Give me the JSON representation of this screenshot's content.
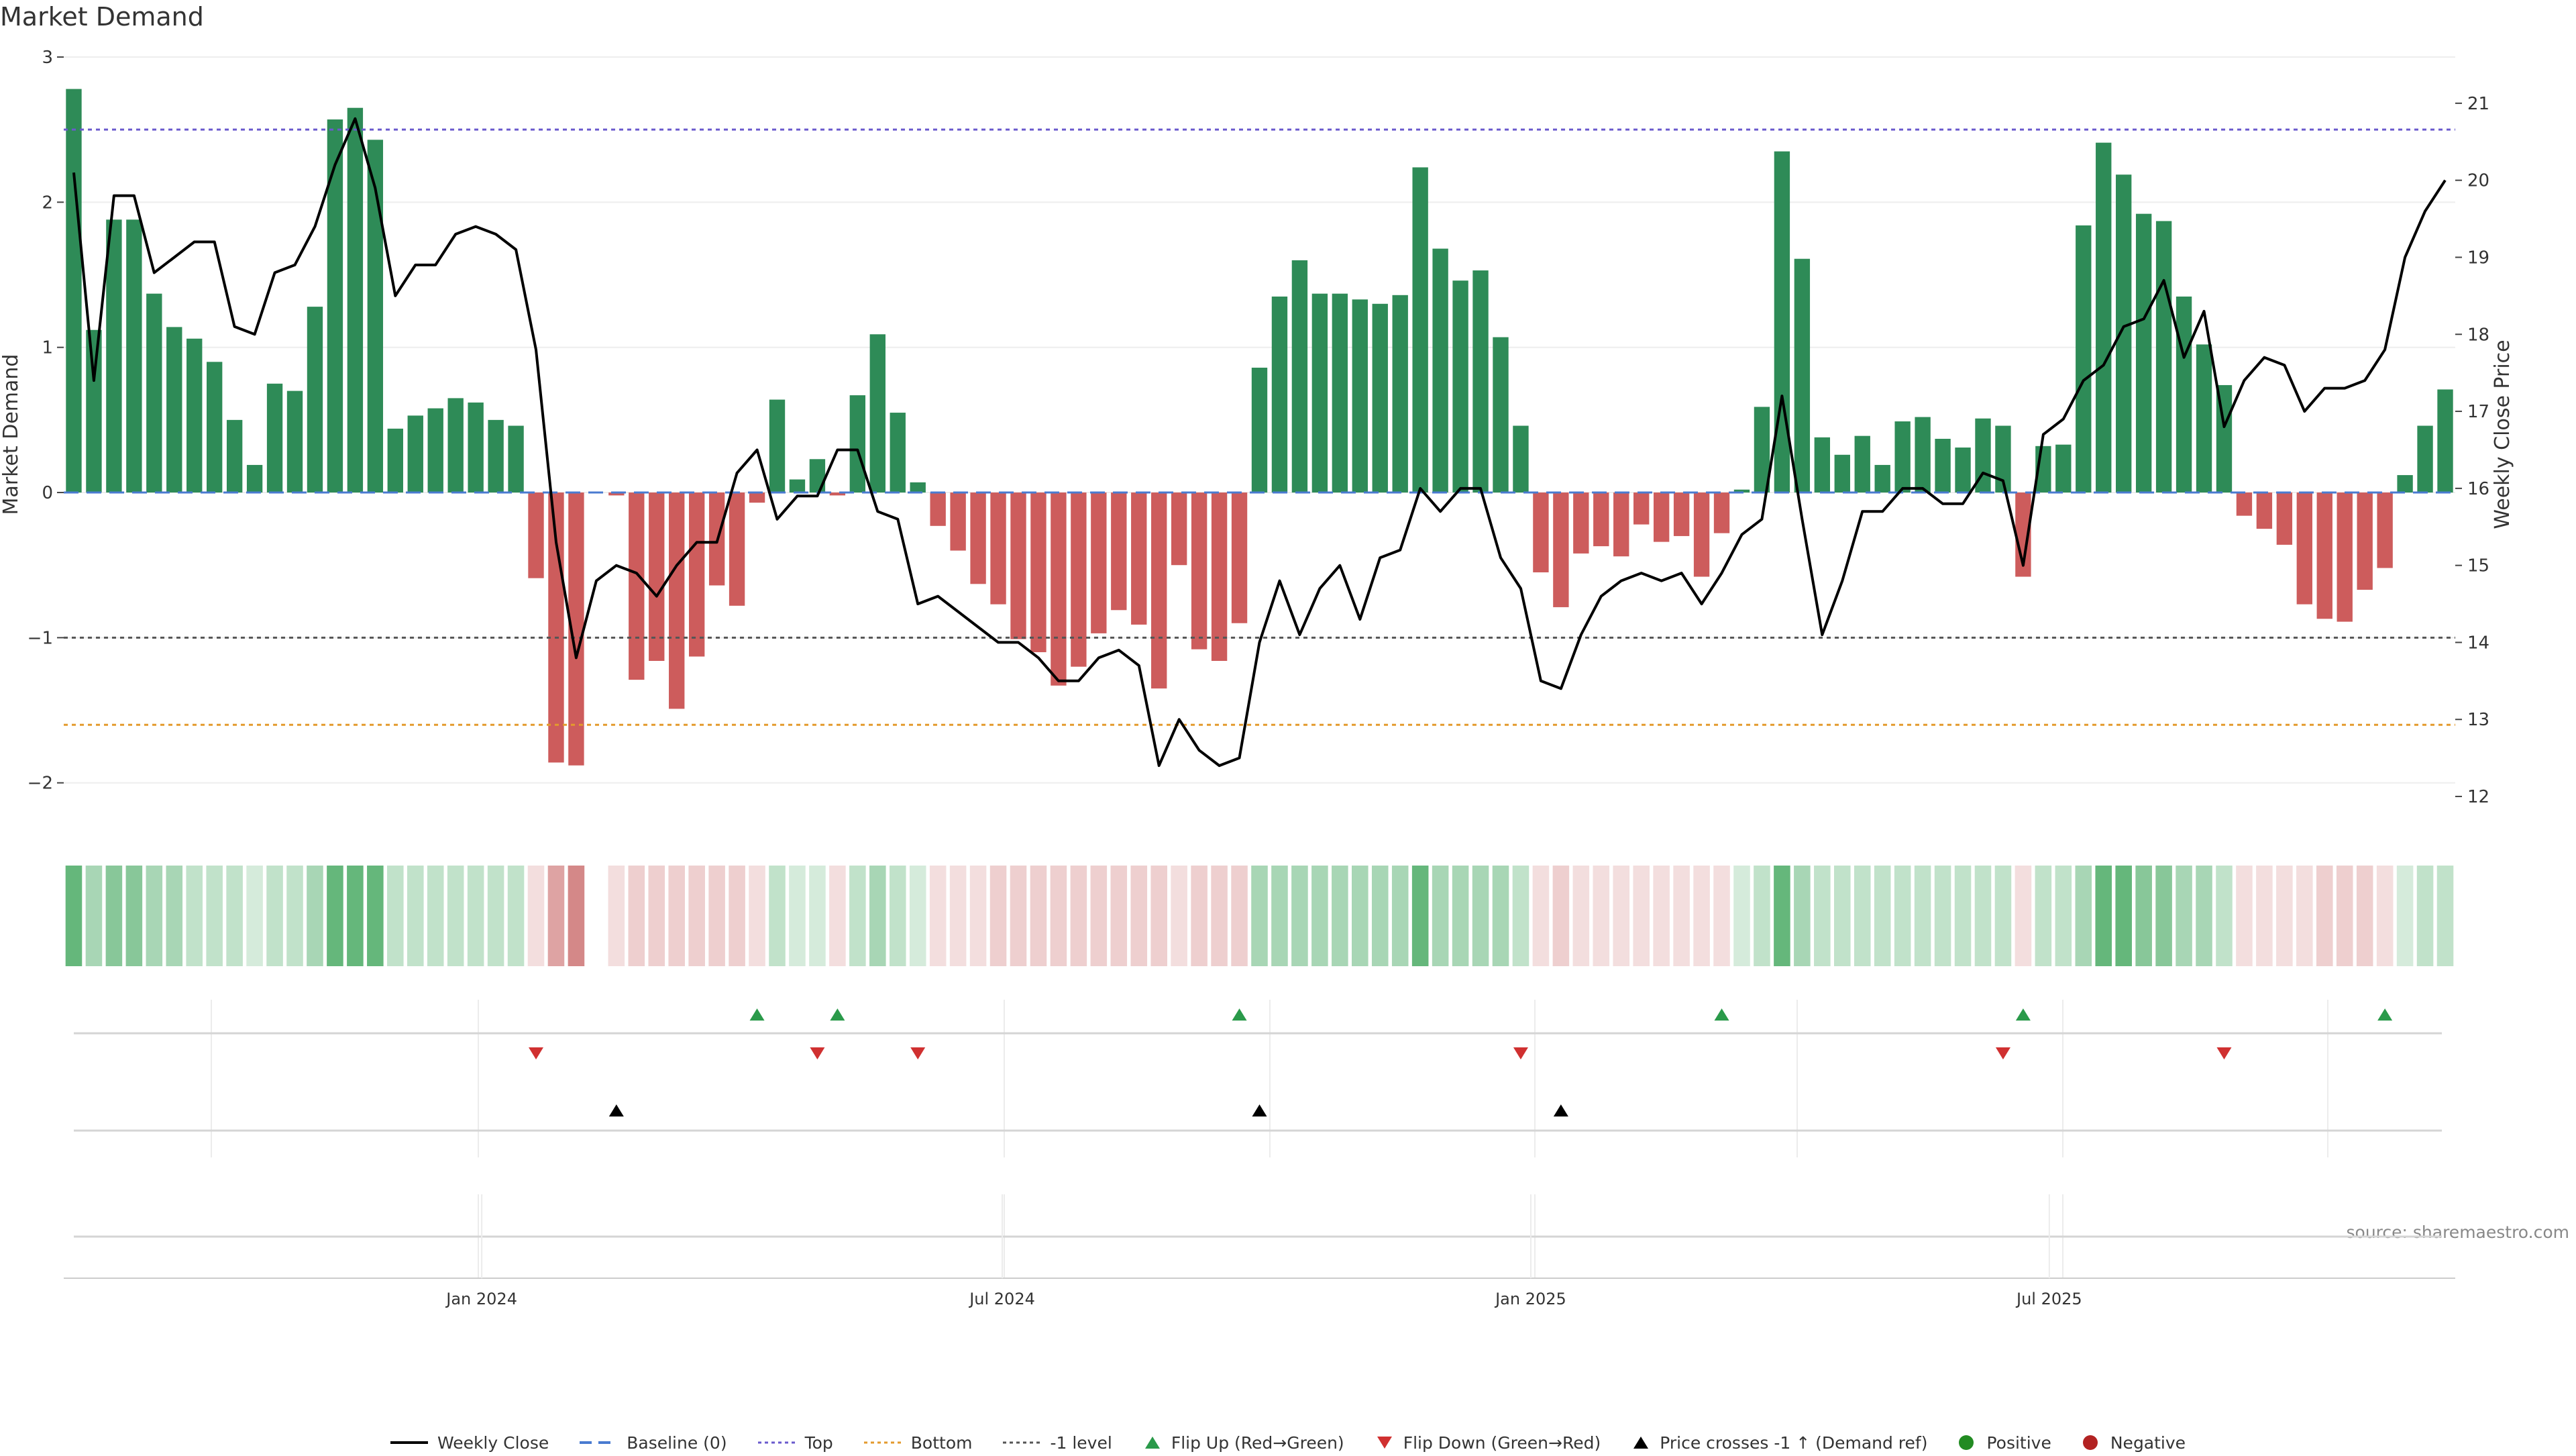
{
  "chart_data": {
    "type": "bar",
    "title": "Market Demand",
    "ylabel": "Market Demand",
    "y2label": "Weekly Close Price",
    "source": "source: sharemaestro.com",
    "ylim": [
      -2.2,
      3.0
    ],
    "y_ticks": [
      3,
      2,
      1,
      0,
      -1,
      -2
    ],
    "y_tick_labels": [
      "3",
      "2",
      "1",
      "0",
      "−1",
      "−2"
    ],
    "y2lim": [
      11.8,
      21.6
    ],
    "y2_ticks": [
      21,
      20,
      19,
      18,
      17,
      16,
      15,
      14,
      13,
      12
    ],
    "y2_tick_labels": [
      "21",
      "20",
      "19",
      "18",
      "17",
      "16",
      "15",
      "14",
      "13",
      "12"
    ],
    "x_ticks": [
      {
        "label": "Jan 2024",
        "week": 20.3
      },
      {
        "label": "Jul 2024",
        "week": 46.2
      },
      {
        "label": "Jan 2025",
        "week": 72.5
      },
      {
        "label": "Jul 2025",
        "week": 98.3
      }
    ],
    "reference_lines": {
      "baseline": 0,
      "top": 2.5,
      "bottom": -1.6,
      "minus_one": -1
    },
    "demand": [
      2.78,
      1.12,
      1.88,
      1.88,
      1.37,
      1.14,
      1.06,
      0.9,
      0.5,
      0.19,
      0.75,
      0.7,
      1.28,
      2.57,
      2.65,
      2.43,
      0.44,
      0.53,
      0.58,
      0.65,
      0.62,
      0.5,
      0.46,
      -0.59,
      -1.86,
      -1.88,
      null,
      -0.02,
      -1.29,
      -1.16,
      -1.49,
      -1.13,
      -0.64,
      -0.78,
      -0.07,
      0.64,
      0.09,
      0.23,
      -0.02,
      0.67,
      1.09,
      0.55,
      0.07,
      -0.23,
      -0.4,
      -0.63,
      -0.77,
      -1.01,
      -1.1,
      -1.33,
      -1.2,
      -0.97,
      -0.81,
      -0.91,
      -1.35,
      -0.5,
      -1.08,
      -1.16,
      -0.9,
      0.86,
      1.35,
      1.6,
      1.37,
      1.37,
      1.33,
      1.3,
      1.36,
      2.24,
      1.68,
      1.46,
      1.53,
      1.07,
      0.46,
      -0.55,
      -0.79,
      -0.42,
      -0.37,
      -0.44,
      -0.22,
      -0.34,
      -0.3,
      -0.58,
      -0.28,
      0.02,
      0.59,
      2.35,
      1.61,
      0.38,
      0.26,
      0.39,
      0.19,
      0.49,
      0.52,
      0.37,
      0.31,
      0.51,
      0.46,
      -0.58,
      0.32,
      0.33,
      1.84,
      2.41,
      2.19,
      1.92,
      1.87,
      1.35,
      1.02,
      0.74,
      -0.16,
      -0.25,
      -0.36,
      -0.77,
      -0.87,
      -0.89,
      -0.67,
      -0.52,
      0.12,
      0.46,
      0.71
    ],
    "weekly_close": [
      20.1,
      17.4,
      19.8,
      19.8,
      18.8,
      19.0,
      19.2,
      19.2,
      18.1,
      18.0,
      18.8,
      18.9,
      19.4,
      20.2,
      20.8,
      19.9,
      18.5,
      18.9,
      18.9,
      19.3,
      19.4,
      19.3,
      19.1,
      17.8,
      15.3,
      13.8,
      14.8,
      15.0,
      14.9,
      14.6,
      15.0,
      15.3,
      15.3,
      16.2,
      16.5,
      15.6,
      15.9,
      15.9,
      16.5,
      16.5,
      15.7,
      15.6,
      14.5,
      14.6,
      14.4,
      14.2,
      14.0,
      14.0,
      13.8,
      13.5,
      13.5,
      13.8,
      13.9,
      13.7,
      12.4,
      13.0,
      12.6,
      12.4,
      12.5,
      14.0,
      14.8,
      14.1,
      14.7,
      15.0,
      14.3,
      15.1,
      15.2,
      16.0,
      15.7,
      16.0,
      16.0,
      15.1,
      14.7,
      13.5,
      13.4,
      14.1,
      14.6,
      14.8,
      14.9,
      14.8,
      14.9,
      14.5,
      14.9,
      15.4,
      15.6,
      17.2,
      15.6,
      14.1,
      14.8,
      15.7,
      15.7,
      16.0,
      16.0,
      15.8,
      15.8,
      16.2,
      16.1,
      15.0,
      16.7,
      16.9,
      17.4,
      17.6,
      18.1,
      18.2,
      18.7,
      17.7,
      18.3,
      16.8,
      17.4,
      17.7,
      17.6,
      17.0,
      17.3,
      17.3,
      17.4,
      17.8,
      19.0,
      19.6,
      20.0
    ],
    "strip_intensity": [
      2,
      4,
      3,
      3,
      4,
      4,
      5,
      5,
      5,
      6,
      5,
      5,
      4,
      2,
      2,
      2,
      5,
      5,
      5,
      5,
      5,
      5,
      5,
      6,
      3,
      2,
      null,
      6,
      5,
      5,
      5,
      5,
      5,
      5,
      6,
      5,
      6,
      6,
      6,
      5,
      4,
      5,
      6,
      6,
      6,
      6,
      5,
      5,
      5,
      5,
      5,
      5,
      5,
      5,
      5,
      6,
      5,
      5,
      5,
      4,
      4,
      4,
      4,
      4,
      4,
      4,
      4,
      2,
      4,
      4,
      4,
      4,
      5,
      6,
      5,
      6,
      6,
      6,
      6,
      6,
      6,
      6,
      6,
      6,
      5,
      2,
      4,
      5,
      5,
      5,
      5,
      5,
      5,
      5,
      5,
      5,
      5,
      6,
      5,
      5,
      4,
      2,
      2,
      3,
      3,
      4,
      4,
      5,
      6,
      6,
      6,
      6,
      5,
      5,
      5,
      6,
      6,
      5,
      5
    ],
    "flip_up_weeks": [
      34,
      38,
      58,
      82,
      97,
      115
    ],
    "flip_down_weeks": [
      23,
      37,
      42,
      72,
      96,
      107
    ],
    "price_cross_weeks": [
      27,
      59,
      74
    ],
    "colors": {
      "positive_bar": "#2e8b57",
      "negative_bar": "#cd5c5c",
      "strip_positive": "#3fa55a",
      "strip_negative": "#c96a6a",
      "line": "#000000",
      "top_line": "#6a5acd",
      "bottom_line": "#e39a2d",
      "minus_one_line": "#555555",
      "baseline": "#4a7bd0",
      "flip_up": "#2a9a4a",
      "flip_down": "#d03030",
      "price_cross": "#000000",
      "positive_dot": "#228b22",
      "negative_dot": "#b22222"
    }
  },
  "legend": [
    {
      "key": "weekly_close",
      "label": "Weekly Close",
      "icon": "solid-line-icon"
    },
    {
      "key": "baseline",
      "label": "Baseline (0)",
      "icon": "dashed-line-icon"
    },
    {
      "key": "top",
      "label": "Top",
      "icon": "dotted-line-icon"
    },
    {
      "key": "bottom",
      "label": "Bottom",
      "icon": "dotted-line-icon"
    },
    {
      "key": "minus_one",
      "label": "-1 level",
      "icon": "dotted-line-icon"
    },
    {
      "key": "flip_up",
      "label": "Flip Up (Red→Green)",
      "icon": "triangle-up-icon"
    },
    {
      "key": "flip_down",
      "label": "Flip Down (Green→Red)",
      "icon": "triangle-down-icon"
    },
    {
      "key": "price_cross",
      "label": "Price crosses -1 ↑ (Demand ref)",
      "icon": "triangle-up-icon"
    },
    {
      "key": "positive",
      "label": "Positive",
      "icon": "dot-icon"
    },
    {
      "key": "negative",
      "label": "Negative",
      "icon": "dot-icon"
    }
  ]
}
